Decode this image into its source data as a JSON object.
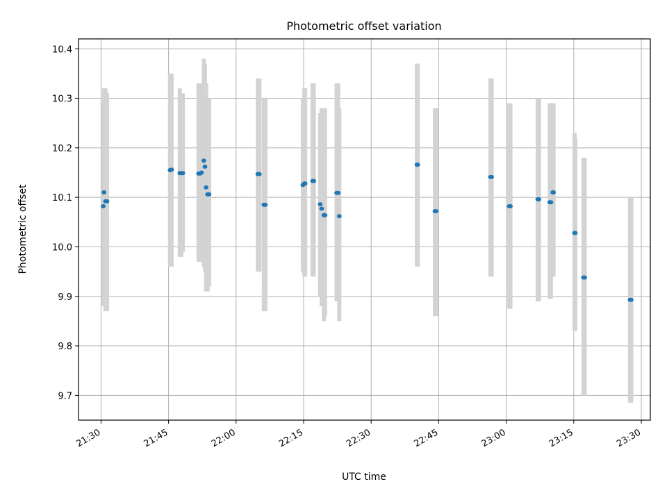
{
  "chart_data": {
    "type": "scatter",
    "title": "Photometric offset variation",
    "xlabel": "UTC time",
    "ylabel": "Photometric offset",
    "ylim": [
      9.65,
      10.42
    ],
    "yticks": [
      9.7,
      9.8,
      9.9,
      10.0,
      10.1,
      10.2,
      10.3,
      10.4
    ],
    "ytick_labels": [
      "9.7",
      "9.8",
      "9.9",
      "10.0",
      "10.1",
      "10.2",
      "10.3",
      "10.4"
    ],
    "xlim": [
      "21:25",
      "23:32"
    ],
    "xticks": [
      "21:30",
      "21:45",
      "22:00",
      "22:15",
      "22:30",
      "22:45",
      "23:00",
      "23:15",
      "23:30"
    ],
    "xtick_labels": [
      "21:30",
      "21:45",
      "22:00",
      "22:15",
      "22:30",
      "22:45",
      "23:00",
      "23:15",
      "23:30"
    ],
    "grid": true,
    "colors": {
      "points": "#1f77b4",
      "errorbars": "#d3d3d3"
    },
    "series": [
      {
        "points": [
          {
            "x": "21:30:30",
            "y": 10.082,
            "lo": 9.88,
            "hi": 10.29
          },
          {
            "x": "21:30:40",
            "y": 10.11,
            "lo": 9.88,
            "hi": 10.32
          },
          {
            "x": "21:31:00",
            "y": 10.092,
            "lo": 9.87,
            "hi": 10.32
          },
          {
            "x": "21:31:20",
            "y": 10.092,
            "lo": 9.87,
            "hi": 10.31
          },
          {
            "x": "21:45:20",
            "y": 10.155,
            "lo": 9.96,
            "hi": 10.35
          },
          {
            "x": "21:45:40",
            "y": 10.156,
            "lo": 9.96,
            "hi": 10.35
          },
          {
            "x": "21:47:30",
            "y": 10.149,
            "lo": 9.98,
            "hi": 10.32
          },
          {
            "x": "21:47:50",
            "y": 10.149,
            "lo": 9.98,
            "hi": 10.31
          },
          {
            "x": "21:48:10",
            "y": 10.149,
            "lo": 9.99,
            "hi": 10.31
          },
          {
            "x": "21:51:40",
            "y": 10.148,
            "lo": 9.97,
            "hi": 10.33
          },
          {
            "x": "21:52:00",
            "y": 10.148,
            "lo": 9.97,
            "hi": 10.33
          },
          {
            "x": "21:52:20",
            "y": 10.15,
            "lo": 9.97,
            "hi": 10.33
          },
          {
            "x": "21:52:50",
            "y": 10.174,
            "lo": 9.96,
            "hi": 10.38
          },
          {
            "x": "21:53:05",
            "y": 10.162,
            "lo": 9.95,
            "hi": 10.37
          },
          {
            "x": "21:53:20",
            "y": 10.12,
            "lo": 9.91,
            "hi": 10.33
          },
          {
            "x": "21:53:40",
            "y": 10.106,
            "lo": 9.91,
            "hi": 10.3
          },
          {
            "x": "21:54:00",
            "y": 10.106,
            "lo": 9.92,
            "hi": 10.3
          },
          {
            "x": "22:04:50",
            "y": 10.147,
            "lo": 9.95,
            "hi": 10.34
          },
          {
            "x": "22:05:10",
            "y": 10.147,
            "lo": 9.95,
            "hi": 10.34
          },
          {
            "x": "22:06:10",
            "y": 10.085,
            "lo": 9.87,
            "hi": 10.3
          },
          {
            "x": "22:06:30",
            "y": 10.085,
            "lo": 9.87,
            "hi": 10.3
          },
          {
            "x": "22:14:50",
            "y": 10.125,
            "lo": 9.95,
            "hi": 10.3
          },
          {
            "x": "22:15:10",
            "y": 10.128,
            "lo": 9.94,
            "hi": 10.32
          },
          {
            "x": "22:15:20",
            "y": 10.128,
            "lo": 9.94,
            "hi": 10.32
          },
          {
            "x": "22:17:00",
            "y": 10.133,
            "lo": 9.94,
            "hi": 10.33
          },
          {
            "x": "22:17:15",
            "y": 10.133,
            "lo": 9.94,
            "hi": 10.33
          },
          {
            "x": "22:18:40",
            "y": 10.086,
            "lo": 9.9,
            "hi": 10.27
          },
          {
            "x": "22:19:00",
            "y": 10.077,
            "lo": 9.88,
            "hi": 10.28
          },
          {
            "x": "22:19:30",
            "y": 10.064,
            "lo": 9.85,
            "hi": 10.28
          },
          {
            "x": "22:19:45",
            "y": 10.064,
            "lo": 9.86,
            "hi": 10.28
          },
          {
            "x": "22:22:20",
            "y": 10.109,
            "lo": 9.89,
            "hi": 10.33
          },
          {
            "x": "22:22:40",
            "y": 10.109,
            "lo": 9.89,
            "hi": 10.33
          },
          {
            "x": "22:22:55",
            "y": 10.062,
            "lo": 9.85,
            "hi": 10.28
          },
          {
            "x": "22:40:10",
            "y": 10.166,
            "lo": 9.96,
            "hi": 10.37
          },
          {
            "x": "22:40:20",
            "y": 10.166,
            "lo": 9.96,
            "hi": 10.37
          },
          {
            "x": "22:44:10",
            "y": 10.072,
            "lo": 9.86,
            "hi": 10.28
          },
          {
            "x": "22:44:25",
            "y": 10.072,
            "lo": 9.86,
            "hi": 10.28
          },
          {
            "x": "22:56:30",
            "y": 10.141,
            "lo": 9.94,
            "hi": 10.34
          },
          {
            "x": "22:56:45",
            "y": 10.141,
            "lo": 9.94,
            "hi": 10.34
          },
          {
            "x": "23:00:40",
            "y": 10.082,
            "lo": 9.875,
            "hi": 10.29
          },
          {
            "x": "23:00:55",
            "y": 10.082,
            "lo": 9.875,
            "hi": 10.29
          },
          {
            "x": "23:07:00",
            "y": 10.096,
            "lo": 9.89,
            "hi": 10.3
          },
          {
            "x": "23:07:15",
            "y": 10.096,
            "lo": 9.89,
            "hi": 10.3
          },
          {
            "x": "23:09:40",
            "y": 10.09,
            "lo": 9.895,
            "hi": 10.29
          },
          {
            "x": "23:09:55",
            "y": 10.09,
            "lo": 9.895,
            "hi": 10.29
          },
          {
            "x": "23:10:20",
            "y": 10.11,
            "lo": 9.94,
            "hi": 10.29
          },
          {
            "x": "23:10:30",
            "y": 10.11,
            "lo": 9.94,
            "hi": 10.29
          },
          {
            "x": "23:15:10",
            "y": 10.028,
            "lo": 9.83,
            "hi": 10.23
          },
          {
            "x": "23:15:20",
            "y": 10.028,
            "lo": 9.83,
            "hi": 10.22
          },
          {
            "x": "23:17:10",
            "y": 9.938,
            "lo": 9.7,
            "hi": 10.18
          },
          {
            "x": "23:17:25",
            "y": 9.938,
            "lo": 9.7,
            "hi": 10.18
          },
          {
            "x": "23:27:30",
            "y": 9.893,
            "lo": 9.685,
            "hi": 10.1
          },
          {
            "x": "23:27:45",
            "y": 9.893,
            "lo": 9.685,
            "hi": 10.1
          }
        ]
      }
    ]
  }
}
